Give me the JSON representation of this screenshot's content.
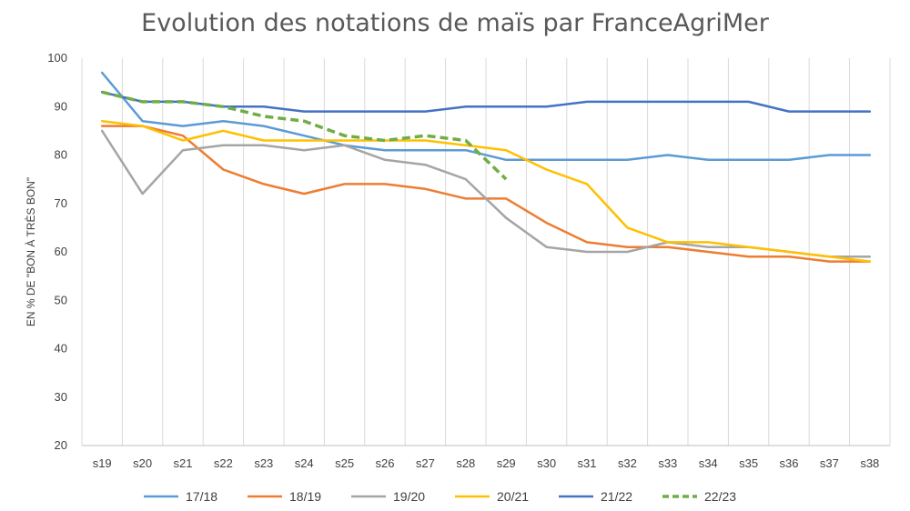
{
  "chart_data": {
    "type": "line",
    "title": "Evolution des notations de maïs par FranceAgriMer",
    "ylabel": "EN % DE \"BON À TRÈS BON\"",
    "xlabel": "",
    "ylim": [
      20,
      100
    ],
    "yticks": [
      20,
      30,
      40,
      50,
      60,
      70,
      80,
      90,
      100
    ],
    "grid": "vertical",
    "legend": "bottom",
    "categories": [
      "s19",
      "s20",
      "s21",
      "s22",
      "s23",
      "s24",
      "s25",
      "s26",
      "s27",
      "s28",
      "s29",
      "s30",
      "s31",
      "s32",
      "s33",
      "s34",
      "s35",
      "s36",
      "s37",
      "s38"
    ],
    "series": [
      {
        "name": "17/18",
        "color": "#5b9bd5",
        "dashed": false,
        "values": [
          97,
          87,
          86,
          87,
          86,
          84,
          82,
          81,
          81,
          81,
          79,
          79,
          79,
          79,
          80,
          79,
          79,
          79,
          80,
          80
        ]
      },
      {
        "name": "18/19",
        "color": "#ed7d31",
        "dashed": false,
        "values": [
          86,
          86,
          84,
          77,
          74,
          72,
          74,
          74,
          73,
          71,
          71,
          66,
          62,
          61,
          61,
          60,
          59,
          59,
          58,
          58
        ]
      },
      {
        "name": "19/20",
        "color": "#a5a5a5",
        "dashed": false,
        "values": [
          85,
          72,
          81,
          82,
          82,
          81,
          82,
          79,
          78,
          75,
          67,
          61,
          60,
          60,
          62,
          61,
          61,
          60,
          59,
          59
        ]
      },
      {
        "name": "20/21",
        "color": "#ffc000",
        "dashed": false,
        "values": [
          87,
          86,
          83,
          85,
          83,
          83,
          83,
          83,
          83,
          82,
          81,
          77,
          74,
          65,
          62,
          62,
          61,
          60,
          59,
          58
        ]
      },
      {
        "name": "21/22",
        "color": "#4472c4",
        "dashed": false,
        "values": [
          93,
          91,
          91,
          90,
          90,
          89,
          89,
          89,
          89,
          90,
          90,
          90,
          91,
          91,
          91,
          91,
          91,
          89,
          89,
          89
        ]
      },
      {
        "name": "22/23",
        "color": "#70ad47",
        "dashed": true,
        "values": [
          93,
          91,
          91,
          90,
          88,
          87,
          84,
          83,
          84,
          83,
          75,
          null,
          null,
          null,
          null,
          null,
          null,
          null,
          null,
          null
        ]
      }
    ]
  }
}
